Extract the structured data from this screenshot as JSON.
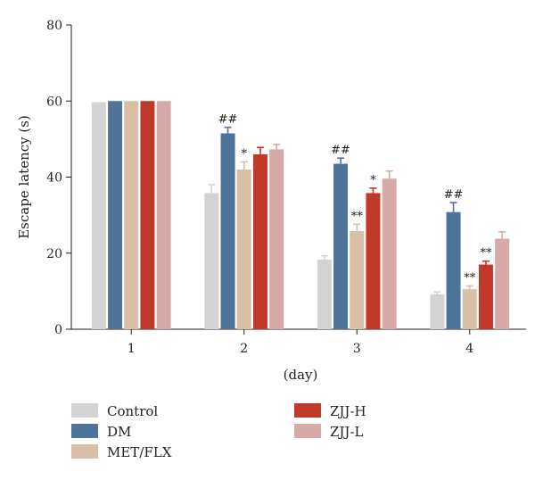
{
  "chart_data": {
    "type": "bar",
    "xlabel": "(day)",
    "ylabel": "Escape latency (s)",
    "ylim": [
      0,
      80
    ],
    "yticks": [
      0,
      20,
      40,
      60,
      80
    ],
    "categories": [
      "1",
      "2",
      "3",
      "4"
    ],
    "legend_placement": "bottom",
    "grid": false,
    "series": [
      {
        "name": "Control",
        "color": "#d3d3d3",
        "values": [
          59.7,
          35.8,
          18.3,
          9.2
        ],
        "errors": [
          0.2,
          2.2,
          1.0,
          0.6
        ],
        "annotations": [
          "",
          "",
          "",
          ""
        ]
      },
      {
        "name": "DM",
        "color": "#4f7499",
        "values": [
          60.0,
          51.5,
          43.5,
          30.8
        ],
        "errors": [
          0.2,
          1.6,
          1.5,
          2.5
        ],
        "annotations": [
          "",
          "##",
          "##",
          "##"
        ]
      },
      {
        "name": "MET/FLX",
        "color": "#d9bfa5",
        "values": [
          60.0,
          42.0,
          25.8,
          10.5
        ],
        "errors": [
          0.2,
          2.0,
          1.8,
          0.9
        ],
        "annotations": [
          "",
          "*",
          "**",
          "**"
        ]
      },
      {
        "name": "ZJJ-H",
        "color": "#c0392b",
        "values": [
          60.0,
          46.0,
          35.8,
          17.0
        ],
        "errors": [
          0.2,
          1.8,
          1.3,
          0.9
        ],
        "annotations": [
          "",
          "",
          "*",
          "**"
        ]
      },
      {
        "name": "ZJJ-L",
        "color": "#d5aaa8",
        "values": [
          60.0,
          47.3,
          39.6,
          23.8
        ],
        "errors": [
          0.2,
          1.3,
          2.0,
          1.8
        ],
        "annotations": [
          "",
          "",
          "",
          ""
        ]
      }
    ]
  }
}
